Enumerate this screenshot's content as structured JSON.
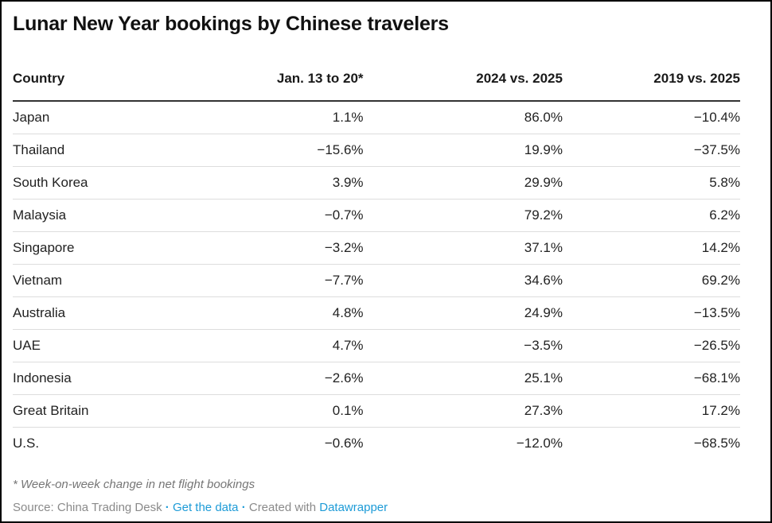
{
  "title": "Lunar New Year bookings by Chinese travelers",
  "table": {
    "columns": [
      "Country",
      "Jan. 13 to 20*",
      "2024 vs. 2025",
      "2019 vs. 2025"
    ],
    "rows": [
      [
        "Japan",
        "1.1%",
        "86.0%",
        "−10.4%"
      ],
      [
        "Thailand",
        "−15.6%",
        "19.9%",
        "−37.5%"
      ],
      [
        "South Korea",
        "3.9%",
        "29.9%",
        "5.8%"
      ],
      [
        "Malaysia",
        "−0.7%",
        "79.2%",
        "6.2%"
      ],
      [
        "Singapore",
        "−3.2%",
        "37.1%",
        "14.2%"
      ],
      [
        "Vietnam",
        "−7.7%",
        "34.6%",
        "69.2%"
      ],
      [
        "Australia",
        "4.8%",
        "24.9%",
        "−13.5%"
      ],
      [
        "UAE",
        "4.7%",
        "−3.5%",
        "−26.5%"
      ],
      [
        "Indonesia",
        "−2.6%",
        "25.1%",
        "−68.1%"
      ],
      [
        "Great Britain",
        "0.1%",
        "27.3%",
        "17.2%"
      ],
      [
        "U.S.",
        "−0.6%",
        "−12.0%",
        "−68.5%"
      ]
    ]
  },
  "chart_data": {
    "type": "table",
    "title": "Lunar New Year bookings by Chinese travelers",
    "columns": [
      "Country",
      "Jan. 13 to 20*",
      "2024 vs. 2025",
      "2019 vs. 2025"
    ],
    "unit": "%",
    "rows": [
      {
        "country": "Japan",
        "jan_13_to_20": 1.1,
        "vs_2024": 86.0,
        "vs_2019": -10.4
      },
      {
        "country": "Thailand",
        "jan_13_to_20": -15.6,
        "vs_2024": 19.9,
        "vs_2019": -37.5
      },
      {
        "country": "South Korea",
        "jan_13_to_20": 3.9,
        "vs_2024": 29.9,
        "vs_2019": 5.8
      },
      {
        "country": "Malaysia",
        "jan_13_to_20": -0.7,
        "vs_2024": 79.2,
        "vs_2019": 6.2
      },
      {
        "country": "Singapore",
        "jan_13_to_20": -3.2,
        "vs_2024": 37.1,
        "vs_2019": 14.2
      },
      {
        "country": "Vietnam",
        "jan_13_to_20": -7.7,
        "vs_2024": 34.6,
        "vs_2019": 69.2
      },
      {
        "country": "Australia",
        "jan_13_to_20": 4.8,
        "vs_2024": 24.9,
        "vs_2019": -13.5
      },
      {
        "country": "UAE",
        "jan_13_to_20": 4.7,
        "vs_2024": -3.5,
        "vs_2019": -26.5
      },
      {
        "country": "Indonesia",
        "jan_13_to_20": -2.6,
        "vs_2024": 25.1,
        "vs_2019": -68.1
      },
      {
        "country": "Great Britain",
        "jan_13_to_20": 0.1,
        "vs_2024": 27.3,
        "vs_2019": 17.2
      },
      {
        "country": "U.S.",
        "jan_13_to_20": -0.6,
        "vs_2024": -12.0,
        "vs_2019": -68.5
      }
    ],
    "footnote": "* Week-on-week change in net flight bookings"
  },
  "footer": {
    "footnote": "* Week-on-week change in net flight bookings",
    "source_prefix": "Source: ",
    "source_name": "China Trading Desk",
    "dot": "·",
    "get_data_link": "Get the data",
    "created_with": "Created with",
    "datawrapper_link": "Datawrapper"
  },
  "colors": {
    "link_blue": "#1d9bd7",
    "header_rule": "#333333",
    "row_rule": "#dddddd",
    "text_dark": "#222222",
    "text_gray": "#767676"
  }
}
